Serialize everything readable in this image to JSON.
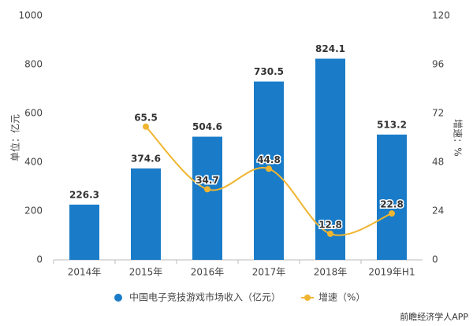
{
  "chart_data": {
    "type": "bar",
    "categories": [
      "2014年",
      "2015年",
      "2016年",
      "2017年",
      "2018年",
      "2019年H1"
    ],
    "series": [
      {
        "name": "中国电子竞技游戏市场收入（亿元）",
        "type": "bar",
        "color": "#1a7cc8",
        "values": [
          226.3,
          374.6,
          504.6,
          730.5,
          824.1,
          513.2
        ]
      },
      {
        "name": "增速（%）",
        "type": "line",
        "axis": "y2",
        "color": "#f0b530",
        "values": [
          null,
          65.5,
          34.7,
          44.8,
          12.8,
          22.8
        ]
      }
    ],
    "ylabel": "单位：亿元",
    "y2label": "增速：%",
    "ylim": [
      0,
      1000
    ],
    "yticks": [
      0,
      200,
      400,
      600,
      800,
      1000
    ],
    "y2lim": [
      0,
      120
    ],
    "y2ticks": [
      0,
      24,
      48,
      72,
      96,
      120
    ],
    "grid": false,
    "source": "前瞻经济学人APP"
  }
}
